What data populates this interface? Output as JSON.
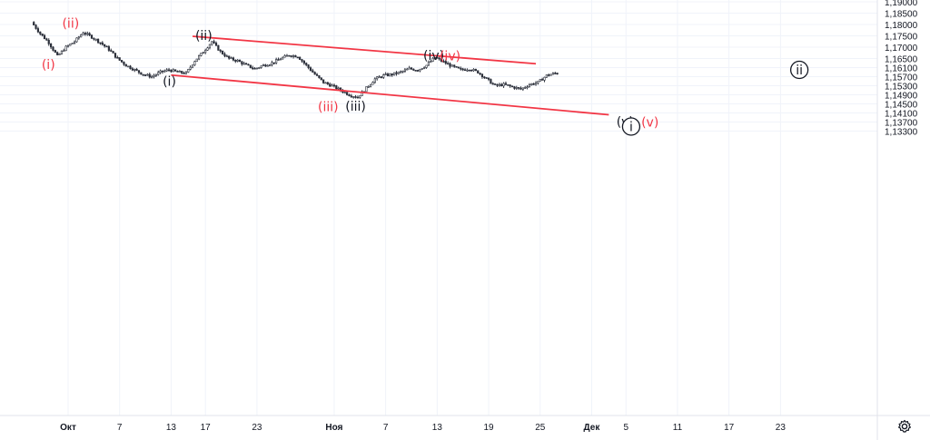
{
  "chart_data": {
    "type": "candlestick",
    "y_range": [
      1.131,
      1.192
    ],
    "y_ticks": [
      "1,19000",
      "1,18500",
      "1,18000",
      "1,17500",
      "1,17000",
      "1,16500",
      "1,16100",
      "1,15700",
      "1,15300",
      "1,14900",
      "1,14500",
      "1,14100",
      "1,13700",
      "1,13300"
    ],
    "y_tick_values": [
      1.19,
      1.185,
      1.18,
      1.175,
      1.17,
      1.165,
      1.161,
      1.157,
      1.153,
      1.149,
      1.145,
      1.141,
      1.137,
      1.133
    ],
    "x_ticks": [
      "Окт",
      "7",
      "13",
      "17",
      "23",
      "Ноя",
      "7",
      "13",
      "19",
      "25",
      "Дек",
      "5",
      "11",
      "17",
      "23"
    ],
    "x_tick_days": [
      0,
      6,
      12,
      16,
      22,
      31,
      37,
      43,
      49,
      55,
      61,
      65,
      71,
      77,
      83
    ],
    "price_path": [
      [
        -4,
        1.181
      ],
      [
        -3,
        1.176
      ],
      [
        -2,
        1.172
      ],
      [
        -1,
        1.166
      ],
      [
        0,
        1.17
      ],
      [
        1,
        1.1725
      ],
      [
        2,
        1.1765
      ],
      [
        3,
        1.1745
      ],
      [
        4,
        1.172
      ],
      [
        5,
        1.169
      ],
      [
        6,
        1.165
      ],
      [
        7,
        1.162
      ],
      [
        8,
        1.16
      ],
      [
        9,
        1.158
      ],
      [
        10,
        1.157
      ],
      [
        11,
        1.159
      ],
      [
        12,
        1.16
      ],
      [
        13,
        1.159
      ],
      [
        14,
        1.1585
      ],
      [
        15,
        1.164
      ],
      [
        16,
        1.168
      ],
      [
        17,
        1.1725
      ],
      [
        18,
        1.168
      ],
      [
        19,
        1.165
      ],
      [
        20,
        1.164
      ],
      [
        21,
        1.162
      ],
      [
        22,
        1.1605
      ],
      [
        23,
        1.162
      ],
      [
        24,
        1.163
      ],
      [
        25,
        1.165
      ],
      [
        26,
        1.1665
      ],
      [
        27,
        1.166
      ],
      [
        28,
        1.162
      ],
      [
        29,
        1.158
      ],
      [
        30,
        1.1545
      ],
      [
        31,
        1.153
      ],
      [
        32,
        1.151
      ],
      [
        33,
        1.149
      ],
      [
        34,
        1.148
      ],
      [
        35,
        1.152
      ],
      [
        36,
        1.156
      ],
      [
        37,
        1.1575
      ],
      [
        38,
        1.158
      ],
      [
        39,
        1.159
      ],
      [
        40,
        1.1605
      ],
      [
        41,
        1.16
      ],
      [
        42,
        1.162
      ],
      [
        43,
        1.1655
      ],
      [
        44,
        1.1635
      ],
      [
        45,
        1.1615
      ],
      [
        46,
        1.16
      ],
      [
        47,
        1.1605
      ],
      [
        48,
        1.159
      ],
      [
        49,
        1.156
      ],
      [
        50,
        1.153
      ],
      [
        51,
        1.1535
      ],
      [
        52,
        1.1525
      ],
      [
        53,
        1.1515
      ],
      [
        54,
        1.1535
      ],
      [
        55,
        1.1545
      ],
      [
        56,
        1.1575
      ],
      [
        57,
        1.1585
      ]
    ],
    "channel_lines": [
      {
        "from": [
          14.5,
          1.1748
        ],
        "to": [
          54.5,
          1.1627
        ],
        "color": "#f23645"
      },
      {
        "from": [
          12,
          1.1577
        ],
        "to": [
          63,
          1.1402
        ],
        "color": "#f23645"
      }
    ],
    "wave_labels": [
      {
        "text": "(ii)",
        "day": 0.3,
        "price": 1.1807,
        "color": "#f23645"
      },
      {
        "text": "(i)",
        "day": -2.3,
        "price": 1.1625,
        "color": "#f23645"
      },
      {
        "text": "(ii)",
        "day": 15.8,
        "price": 1.1752,
        "color": "#131722"
      },
      {
        "text": "(i)",
        "day": 11.8,
        "price": 1.155,
        "color": "#131722"
      },
      {
        "text": "(iv)",
        "day": 42.6,
        "price": 1.1665,
        "color": "#131722"
      },
      {
        "text": "(iv)",
        "day": 44.5,
        "price": 1.1663,
        "color": "#f23645"
      },
      {
        "text": "(iii)",
        "day": 30.3,
        "price": 1.1438,
        "color": "#f23645"
      },
      {
        "text": "(iii)",
        "day": 33.5,
        "price": 1.144,
        "color": "#131722"
      },
      {
        "text": "(v)",
        "day": 64.9,
        "price": 1.1372,
        "color": "#131722"
      },
      {
        "text": "(v)",
        "day": 67.8,
        "price": 1.137,
        "color": "#f23645"
      }
    ],
    "circled_labels": [
      {
        "text": "i",
        "day": 65.6,
        "price": 1.135,
        "color": "#131722"
      },
      {
        "text": "ii",
        "day": 85.2,
        "price": 1.16,
        "color": "#131722"
      }
    ],
    "candle_up_color": "#2a2e39",
    "candle_down_color": "#2a2e39",
    "grid": true,
    "grid_color": "#f0f3fa"
  },
  "toolbar": {
    "settings_icon": "gear-icon"
  }
}
